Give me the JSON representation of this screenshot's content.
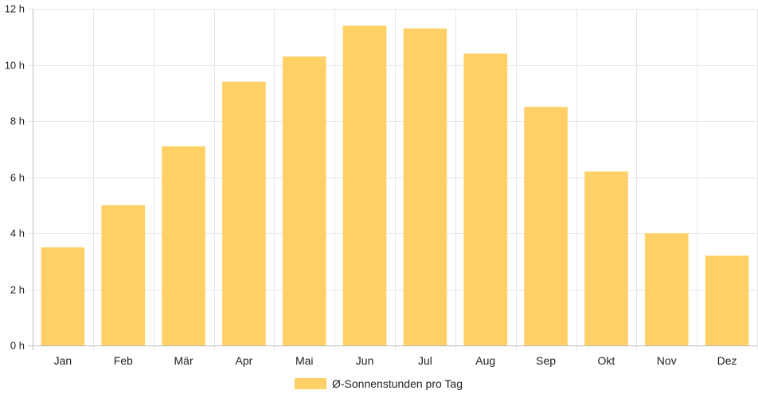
{
  "chart_data": {
    "type": "bar",
    "categories": [
      "Jan",
      "Feb",
      "Mär",
      "Apr",
      "Mai",
      "Jun",
      "Jul",
      "Aug",
      "Sep",
      "Okt",
      "Nov",
      "Dez"
    ],
    "series": [
      {
        "name": "Ø-Sonnenstunden pro Tag",
        "values": [
          3.5,
          5.0,
          7.1,
          9.4,
          10.3,
          11.4,
          11.3,
          10.4,
          8.5,
          6.2,
          4.0,
          3.2
        ],
        "color": "#fed066"
      }
    ],
    "title": "",
    "xlabel": "",
    "ylabel": "",
    "ylim": [
      0,
      12
    ],
    "yticks": [
      0,
      2,
      4,
      6,
      8,
      10,
      12
    ],
    "ytick_labels": [
      "0 h",
      "2 h",
      "4 h",
      "6 h",
      "8 h",
      "10 h",
      "12 h"
    ],
    "grid": true,
    "legend": {
      "position": "bottom",
      "label": "Ø-Sonnenstunden pro Tag"
    }
  }
}
